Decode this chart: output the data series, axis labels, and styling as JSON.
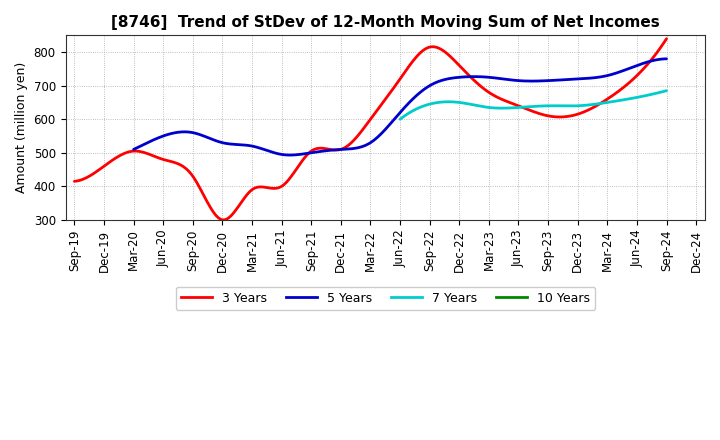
{
  "title": "[8746]  Trend of StDev of 12-Month Moving Sum of Net Incomes",
  "ylabel": "Amount (million yen)",
  "ylim": [
    300,
    850
  ],
  "yticks": [
    300,
    400,
    500,
    600,
    700,
    800
  ],
  "background_color": "#ffffff",
  "plot_background": "#ffffff",
  "x_labels": [
    "Sep-19",
    "Dec-19",
    "Mar-20",
    "Jun-20",
    "Sep-20",
    "Dec-20",
    "Mar-21",
    "Jun-21",
    "Sep-21",
    "Dec-21",
    "Mar-22",
    "Jun-22",
    "Sep-22",
    "Dec-22",
    "Mar-23",
    "Jun-23",
    "Sep-23",
    "Dec-23",
    "Mar-24",
    "Jun-24",
    "Sep-24",
    "Dec-24"
  ],
  "series": {
    "3 Years": {
      "color": "#ff0000",
      "linewidth": 2.0,
      "values": [
        415,
        460,
        505,
        480,
        430,
        300,
        390,
        400,
        505,
        510,
        600,
        720,
        815,
        760,
        680,
        640,
        610,
        615,
        660,
        730,
        840,
        null
      ]
    },
    "5 Years": {
      "color": "#0000cc",
      "linewidth": 2.0,
      "values": [
        null,
        null,
        510,
        550,
        560,
        530,
        520,
        495,
        500,
        510,
        530,
        620,
        700,
        725,
        725,
        715,
        715,
        720,
        730,
        760,
        780,
        null
      ]
    },
    "7 Years": {
      "color": "#00cccc",
      "linewidth": 2.0,
      "values": [
        null,
        null,
        null,
        null,
        null,
        null,
        null,
        null,
        null,
        null,
        null,
        600,
        645,
        650,
        635,
        635,
        640,
        640,
        650,
        665,
        685,
        null
      ]
    },
    "10 Years": {
      "color": "#008800",
      "linewidth": 2.0,
      "values": [
        null,
        null,
        null,
        null,
        null,
        null,
        null,
        null,
        null,
        null,
        null,
        null,
        null,
        null,
        null,
        null,
        null,
        null,
        null,
        null,
        null,
        null
      ]
    }
  },
  "legend_labels": [
    "3 Years",
    "5 Years",
    "7 Years",
    "10 Years"
  ],
  "legend_colors": [
    "#ff0000",
    "#0000cc",
    "#00cccc",
    "#008800"
  ],
  "title_fontsize": 11,
  "ylabel_fontsize": 9,
  "tick_fontsize": 8.5
}
